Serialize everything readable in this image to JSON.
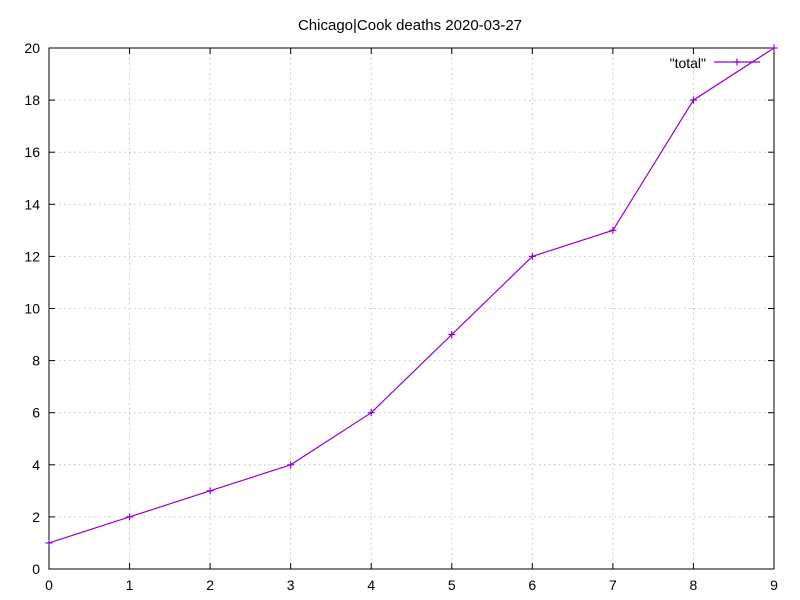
{
  "chart_data": {
    "type": "line",
    "title": "Chicago|Cook deaths 2020-03-27",
    "xlabel": "",
    "ylabel": "",
    "xlim": [
      0,
      9
    ],
    "ylim": [
      0,
      20
    ],
    "x_ticks": [
      0,
      1,
      2,
      3,
      4,
      5,
      6,
      7,
      8,
      9
    ],
    "y_ticks": [
      0,
      2,
      4,
      6,
      8,
      10,
      12,
      14,
      16,
      18,
      20
    ],
    "grid": true,
    "legend_position": "top-right",
    "series": [
      {
        "name": "\"total\"",
        "color": "#9400d3",
        "marker": "plus",
        "x": [
          0,
          1,
          2,
          3,
          4,
          5,
          6,
          7,
          8,
          9
        ],
        "y": [
          1,
          2,
          3,
          4,
          6,
          9,
          12,
          13,
          18,
          20
        ]
      }
    ]
  }
}
